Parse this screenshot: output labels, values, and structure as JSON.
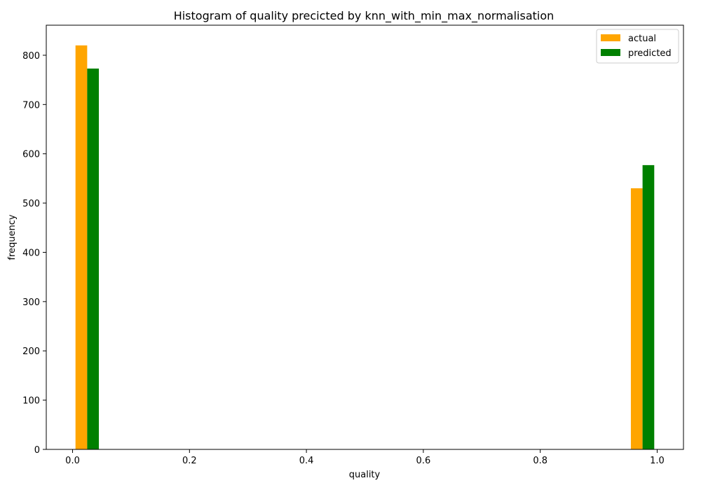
{
  "chart_data": {
    "type": "bar",
    "title": "Histogram of quality precicted by knn_with_min_max_normalisation",
    "xlabel": "quality",
    "ylabel": "frequency",
    "xlim": [
      -0.045,
      1.045
    ],
    "ylim": [
      0,
      861
    ],
    "x_ticks": [
      0.0,
      0.2,
      0.4,
      0.6,
      0.8,
      1.0
    ],
    "x_tick_labels": [
      "0.0",
      "0.2",
      "0.4",
      "0.6",
      "0.8",
      "1.0"
    ],
    "y_ticks": [
      0,
      100,
      200,
      300,
      400,
      500,
      600,
      700,
      800
    ],
    "y_tick_labels": [
      "0",
      "100",
      "200",
      "300",
      "400",
      "500",
      "600",
      "700",
      "800"
    ],
    "grid": false,
    "legend_position": "top-right",
    "categories": [
      0,
      1
    ],
    "series": [
      {
        "name": "actual",
        "color": "#ffa500",
        "x_start": [
          0.005,
          0.955
        ],
        "x_end": [
          0.025,
          0.975
        ],
        "values": [
          820,
          530
        ]
      },
      {
        "name": "predicted",
        "color": "#008000",
        "x_start": [
          0.025,
          0.975
        ],
        "x_end": [
          0.045,
          0.995
        ],
        "values": [
          773,
          577
        ]
      }
    ]
  }
}
